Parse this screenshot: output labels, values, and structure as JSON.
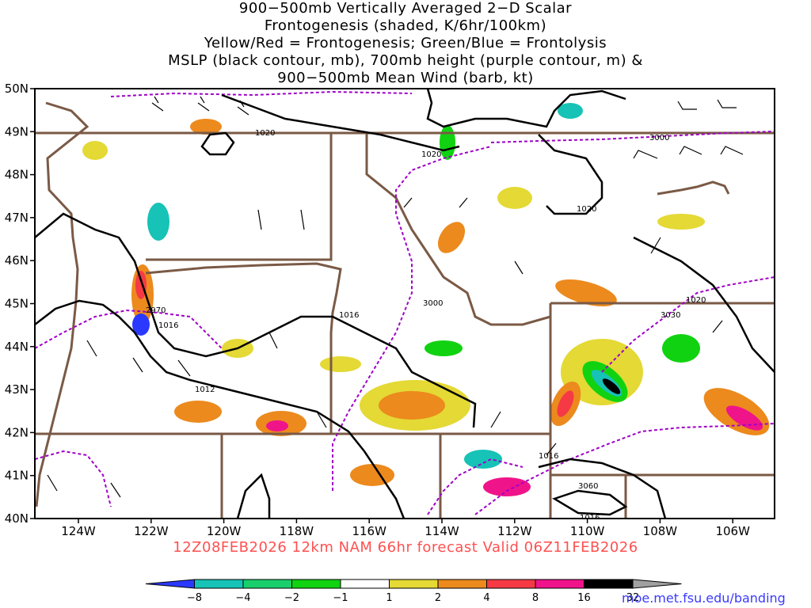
{
  "title": {
    "line1": "900−500mb Vertically Averaged 2−D Scalar",
    "line2": "Frontogenesis (shaded, K/6hr/100km)",
    "line3": "Yellow/Red = Frontogenesis;  Green/Blue = Frontolysis",
    "line4": "MSLP (black contour, mb), 700mb height (purple contour, m) &",
    "line5": "900−500mb Mean Wind (barb, kt)"
  },
  "axes": {
    "lat_labels": [
      "50N",
      "49N",
      "48N",
      "47N",
      "46N",
      "45N",
      "44N",
      "43N",
      "42N",
      "41N",
      "40N"
    ],
    "lon_labels": [
      "124W",
      "122W",
      "120W",
      "118W",
      "116W",
      "114W",
      "112W",
      "110W",
      "108W",
      "106W"
    ]
  },
  "contour_labels": {
    "mslp": [
      "1020",
      "1020",
      "1020",
      "1020",
      "1016",
      "1016",
      "1012",
      "1016",
      "1016"
    ],
    "height": [
      "3000",
      "3000",
      "3030",
      "2970",
      "3060"
    ]
  },
  "caption": "12Z08FEB2026 12km NAM 66hr forecast Valid 06Z11FEB2026",
  "colorbar": {
    "labels": [
      "−8",
      "−4",
      "−2",
      "−1",
      "1",
      "2",
      "4",
      "8",
      "16",
      "32"
    ],
    "colors": [
      "#2b39ff",
      "#16c3b6",
      "#19cf6c",
      "#11d211",
      "#ffffff",
      "#e4d935",
      "#ec8a1d",
      "#f53a45",
      "#f0148a",
      "#000000",
      "#a0a0a0"
    ]
  },
  "credit": "moe.met.fsu.edu/banding",
  "colors": {
    "mslp_contour": "#000000",
    "height_contour": "#a000c8",
    "border": "#7a5a46",
    "caption": "#ff5050",
    "credit": "#3a3aff"
  }
}
